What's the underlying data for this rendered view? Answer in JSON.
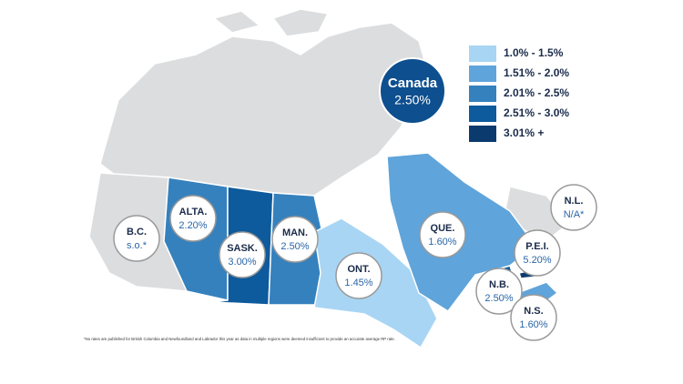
{
  "national": {
    "label": "Canada",
    "value": "2.50%"
  },
  "legend": [
    {
      "label": "1.0% - 1.5%",
      "color": "#a8d5f4"
    },
    {
      "label": "1.51% - 2.0%",
      "color": "#5fa4da"
    },
    {
      "label": "2.01% - 2.5%",
      "color": "#3581bd"
    },
    {
      "label": "2.51% - 3.0%",
      "color": "#0d5a9c"
    },
    {
      "label": "3.01% +",
      "color": "#0b3b6e"
    }
  ],
  "regions": [
    {
      "label": "B.C.",
      "value": "s.o.*"
    },
    {
      "label": "ALTA.",
      "value": "2.20%"
    },
    {
      "label": "SASK.",
      "value": "3.00%"
    },
    {
      "label": "MAN.",
      "value": "2.50%"
    },
    {
      "label": "ONT.",
      "value": "1.45%"
    },
    {
      "label": "QUE.",
      "value": "1.60%"
    },
    {
      "label": "N.L.",
      "value": "N/A*"
    },
    {
      "label": "P.E.I.",
      "value": "5.20%"
    },
    {
      "label": "N.B.",
      "value": "2.50%"
    },
    {
      "label": "N.S.",
      "value": "1.60%"
    }
  ],
  "footnote": "*No rates are published for British Columbia and Newfoundland and Labrador this year as data in multiple regions were deemed insufficient to provide an accurate average RP rate."
}
